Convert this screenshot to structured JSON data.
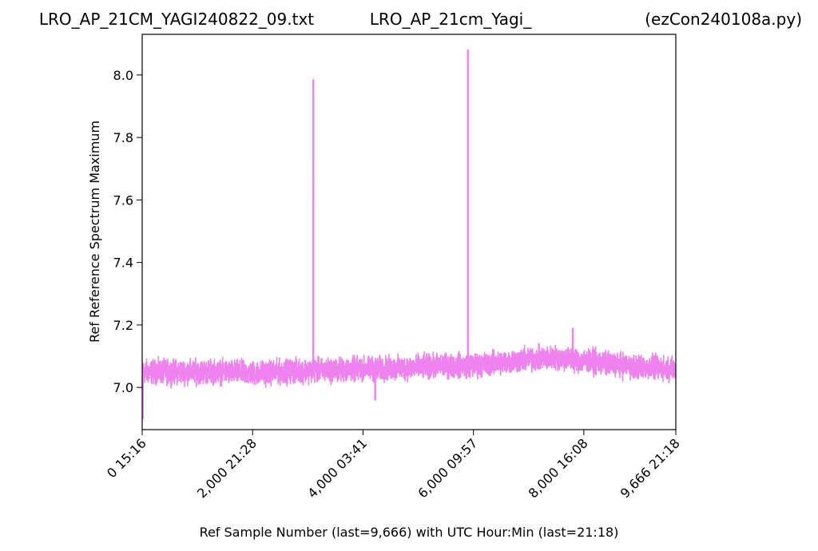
{
  "chart_data": {
    "type": "line",
    "title_left": "LRO_AP_21CM_YAGI240822_09.txt",
    "title_center": "LRO_AP_21cm_Yagi_",
    "title_right": "(ezCon240108a.py)",
    "xlabel": "Ref Sample Number (last=9,666) with UTC Hour:Min (last=21:18)",
    "ylabel": "Ref Reference Spectrum Maximum",
    "xlim": [
      0,
      9666
    ],
    "ylim": [
      6.865,
      8.13
    ],
    "x_ticks": [
      {
        "value": 0,
        "label": "0  15:16"
      },
      {
        "value": 2000,
        "label": "2,000  21:28"
      },
      {
        "value": 4000,
        "label": "4,000  03:41"
      },
      {
        "value": 6000,
        "label": "6,000  09:57"
      },
      {
        "value": 8000,
        "label": "8,000  16:08"
      },
      {
        "value": 9666,
        "label": "9,666  21:18"
      }
    ],
    "y_ticks": [
      {
        "value": 7.0,
        "label": "7.0"
      },
      {
        "value": 7.2,
        "label": "7.2"
      },
      {
        "value": 7.4,
        "label": "7.4"
      },
      {
        "value": 7.6,
        "label": "7.6"
      },
      {
        "value": 7.8,
        "label": "7.8"
      },
      {
        "value": 8.0,
        "label": "8.0"
      }
    ],
    "grid": false,
    "series": [
      {
        "color": "#ee82ee",
        "baseline": [
          [
            0,
            7.05
          ],
          [
            500,
            7.05
          ],
          [
            1000,
            7.05
          ],
          [
            1500,
            7.05
          ],
          [
            2000,
            7.045
          ],
          [
            2500,
            7.05
          ],
          [
            3000,
            7.055
          ],
          [
            3500,
            7.055
          ],
          [
            4000,
            7.06
          ],
          [
            4500,
            7.06
          ],
          [
            5000,
            7.065
          ],
          [
            5500,
            7.07
          ],
          [
            6000,
            7.07
          ],
          [
            6500,
            7.08
          ],
          [
            7000,
            7.09
          ],
          [
            7500,
            7.095
          ],
          [
            8000,
            7.085
          ],
          [
            8500,
            7.075
          ],
          [
            9000,
            7.065
          ],
          [
            9666,
            7.06
          ]
        ],
        "noise_amplitude": 0.055,
        "spikes": [
          {
            "x": 3100,
            "y": 7.985
          },
          {
            "x": 5900,
            "y": 8.08
          },
          {
            "x": 7800,
            "y": 7.19
          },
          {
            "x": 4220,
            "y": 6.96
          },
          {
            "x": 10,
            "y": 6.9
          }
        ]
      }
    ]
  }
}
